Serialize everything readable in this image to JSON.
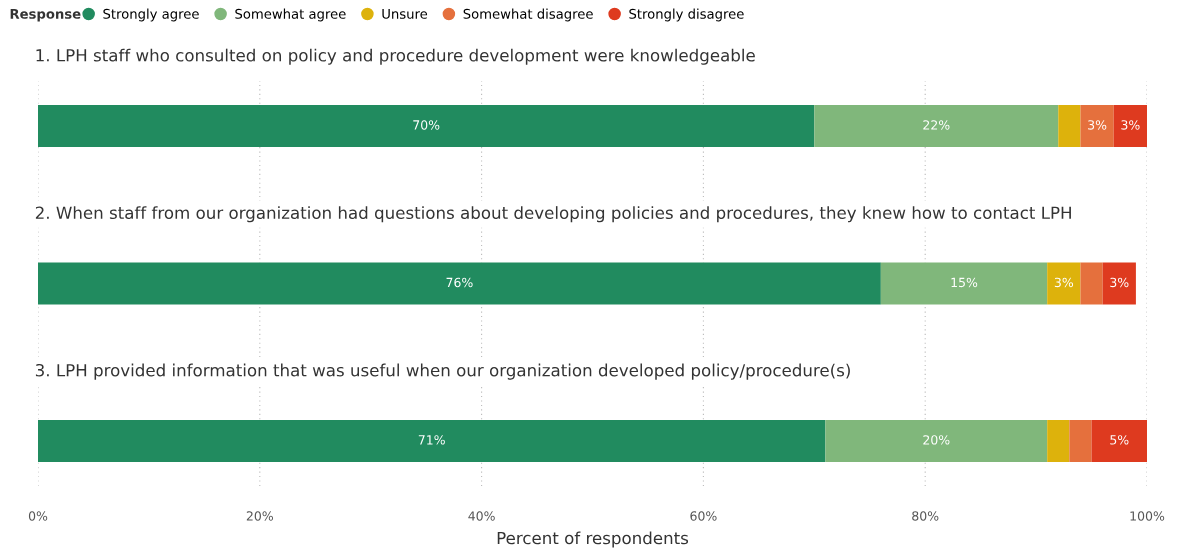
{
  "chart_data": {
    "type": "bar",
    "orientation": "horizontal",
    "stacked": true,
    "legend_title": "Response",
    "legend": "top left",
    "xlabel": "Percent of respondents",
    "categories": [
      "1. LPH staff who consulted on policy and procedure development were knowledgeable",
      "2. When staff from our organization had questions about developing policies and procedures, they knew how to contact LPH",
      "3. LPH provided information that was useful when our organization developed policy/procedure(s)"
    ],
    "xlim": [
      0,
      100
    ],
    "xticks": [
      {
        "value": 0,
        "label": "0%"
      },
      {
        "value": 20,
        "label": "20%"
      },
      {
        "value": 40,
        "label": "40%"
      },
      {
        "value": 60,
        "label": "60%"
      },
      {
        "value": 80,
        "label": "80%"
      },
      {
        "value": 100,
        "label": "100%"
      }
    ],
    "grid": "x",
    "series": [
      {
        "name": "Strongly agree",
        "color": "#218b5f",
        "values": [
          70,
          76,
          71
        ],
        "value_labels": [
          "70%",
          "76%",
          "71%"
        ]
      },
      {
        "name": "Somewhat agree",
        "color": "#80b77b",
        "values": [
          22,
          15,
          20
        ],
        "value_labels": [
          "22%",
          "15%",
          "20%"
        ]
      },
      {
        "name": "Unsure",
        "color": "#ddb20c",
        "values": [
          2,
          3,
          2
        ],
        "value_labels": [
          null,
          "3%",
          null
        ]
      },
      {
        "name": "Somewhat disagree",
        "color": "#e5703d",
        "values": [
          3,
          2,
          2
        ],
        "value_labels": [
          "3%",
          null,
          null
        ]
      },
      {
        "name": "Strongly disagree",
        "color": "#de3a1f",
        "values": [
          3,
          3,
          5
        ],
        "value_labels": [
          "3%",
          "3%",
          "5%"
        ]
      }
    ]
  }
}
